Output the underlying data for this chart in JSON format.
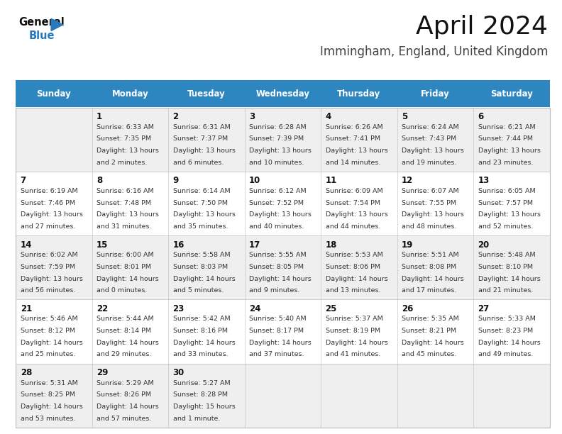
{
  "title": "April 2024",
  "subtitle": "Immingham, England, United Kingdom",
  "header_bg": "#2E86C1",
  "header_text_color": "#FFFFFF",
  "weekdays": [
    "Sunday",
    "Monday",
    "Tuesday",
    "Wednesday",
    "Thursday",
    "Friday",
    "Saturday"
  ],
  "row_bg_odd": "#EFEFEF",
  "row_bg_even": "#FFFFFF",
  "cell_border": "#BBBBBB",
  "title_fontsize": 26,
  "subtitle_fontsize": 12,
  "header_fontsize": 8.5,
  "day_fontsize": 8.5,
  "info_fontsize": 6.8,
  "days": [
    {
      "day": "",
      "row": 0,
      "col": 0,
      "sunrise": "",
      "sunset": "",
      "daylight": ""
    },
    {
      "day": "1",
      "row": 0,
      "col": 1,
      "sunrise": "6:33 AM",
      "sunset": "7:35 PM",
      "daylight": "13 hours\nand 2 minutes."
    },
    {
      "day": "2",
      "row": 0,
      "col": 2,
      "sunrise": "6:31 AM",
      "sunset": "7:37 PM",
      "daylight": "13 hours\nand 6 minutes."
    },
    {
      "day": "3",
      "row": 0,
      "col": 3,
      "sunrise": "6:28 AM",
      "sunset": "7:39 PM",
      "daylight": "13 hours\nand 10 minutes."
    },
    {
      "day": "4",
      "row": 0,
      "col": 4,
      "sunrise": "6:26 AM",
      "sunset": "7:41 PM",
      "daylight": "13 hours\nand 14 minutes."
    },
    {
      "day": "5",
      "row": 0,
      "col": 5,
      "sunrise": "6:24 AM",
      "sunset": "7:43 PM",
      "daylight": "13 hours\nand 19 minutes."
    },
    {
      "day": "6",
      "row": 0,
      "col": 6,
      "sunrise": "6:21 AM",
      "sunset": "7:44 PM",
      "daylight": "13 hours\nand 23 minutes."
    },
    {
      "day": "7",
      "row": 1,
      "col": 0,
      "sunrise": "6:19 AM",
      "sunset": "7:46 PM",
      "daylight": "13 hours\nand 27 minutes."
    },
    {
      "day": "8",
      "row": 1,
      "col": 1,
      "sunrise": "6:16 AM",
      "sunset": "7:48 PM",
      "daylight": "13 hours\nand 31 minutes."
    },
    {
      "day": "9",
      "row": 1,
      "col": 2,
      "sunrise": "6:14 AM",
      "sunset": "7:50 PM",
      "daylight": "13 hours\nand 35 minutes."
    },
    {
      "day": "10",
      "row": 1,
      "col": 3,
      "sunrise": "6:12 AM",
      "sunset": "7:52 PM",
      "daylight": "13 hours\nand 40 minutes."
    },
    {
      "day": "11",
      "row": 1,
      "col": 4,
      "sunrise": "6:09 AM",
      "sunset": "7:54 PM",
      "daylight": "13 hours\nand 44 minutes."
    },
    {
      "day": "12",
      "row": 1,
      "col": 5,
      "sunrise": "6:07 AM",
      "sunset": "7:55 PM",
      "daylight": "13 hours\nand 48 minutes."
    },
    {
      "day": "13",
      "row": 1,
      "col": 6,
      "sunrise": "6:05 AM",
      "sunset": "7:57 PM",
      "daylight": "13 hours\nand 52 minutes."
    },
    {
      "day": "14",
      "row": 2,
      "col": 0,
      "sunrise": "6:02 AM",
      "sunset": "7:59 PM",
      "daylight": "13 hours\nand 56 minutes."
    },
    {
      "day": "15",
      "row": 2,
      "col": 1,
      "sunrise": "6:00 AM",
      "sunset": "8:01 PM",
      "daylight": "14 hours\nand 0 minutes."
    },
    {
      "day": "16",
      "row": 2,
      "col": 2,
      "sunrise": "5:58 AM",
      "sunset": "8:03 PM",
      "daylight": "14 hours\nand 5 minutes."
    },
    {
      "day": "17",
      "row": 2,
      "col": 3,
      "sunrise": "5:55 AM",
      "sunset": "8:05 PM",
      "daylight": "14 hours\nand 9 minutes."
    },
    {
      "day": "18",
      "row": 2,
      "col": 4,
      "sunrise": "5:53 AM",
      "sunset": "8:06 PM",
      "daylight": "14 hours\nand 13 minutes."
    },
    {
      "day": "19",
      "row": 2,
      "col": 5,
      "sunrise": "5:51 AM",
      "sunset": "8:08 PM",
      "daylight": "14 hours\nand 17 minutes."
    },
    {
      "day": "20",
      "row": 2,
      "col": 6,
      "sunrise": "5:48 AM",
      "sunset": "8:10 PM",
      "daylight": "14 hours\nand 21 minutes."
    },
    {
      "day": "21",
      "row": 3,
      "col": 0,
      "sunrise": "5:46 AM",
      "sunset": "8:12 PM",
      "daylight": "14 hours\nand 25 minutes."
    },
    {
      "day": "22",
      "row": 3,
      "col": 1,
      "sunrise": "5:44 AM",
      "sunset": "8:14 PM",
      "daylight": "14 hours\nand 29 minutes."
    },
    {
      "day": "23",
      "row": 3,
      "col": 2,
      "sunrise": "5:42 AM",
      "sunset": "8:16 PM",
      "daylight": "14 hours\nand 33 minutes."
    },
    {
      "day": "24",
      "row": 3,
      "col": 3,
      "sunrise": "5:40 AM",
      "sunset": "8:17 PM",
      "daylight": "14 hours\nand 37 minutes."
    },
    {
      "day": "25",
      "row": 3,
      "col": 4,
      "sunrise": "5:37 AM",
      "sunset": "8:19 PM",
      "daylight": "14 hours\nand 41 minutes."
    },
    {
      "day": "26",
      "row": 3,
      "col": 5,
      "sunrise": "5:35 AM",
      "sunset": "8:21 PM",
      "daylight": "14 hours\nand 45 minutes."
    },
    {
      "day": "27",
      "row": 3,
      "col": 6,
      "sunrise": "5:33 AM",
      "sunset": "8:23 PM",
      "daylight": "14 hours\nand 49 minutes."
    },
    {
      "day": "28",
      "row": 4,
      "col": 0,
      "sunrise": "5:31 AM",
      "sunset": "8:25 PM",
      "daylight": "14 hours\nand 53 minutes."
    },
    {
      "day": "29",
      "row": 4,
      "col": 1,
      "sunrise": "5:29 AM",
      "sunset": "8:26 PM",
      "daylight": "14 hours\nand 57 minutes."
    },
    {
      "day": "30",
      "row": 4,
      "col": 2,
      "sunrise": "5:27 AM",
      "sunset": "8:28 PM",
      "daylight": "15 hours\nand 1 minute."
    },
    {
      "day": "",
      "row": 4,
      "col": 3,
      "sunrise": "",
      "sunset": "",
      "daylight": ""
    },
    {
      "day": "",
      "row": 4,
      "col": 4,
      "sunrise": "",
      "sunset": "",
      "daylight": ""
    },
    {
      "day": "",
      "row": 4,
      "col": 5,
      "sunrise": "",
      "sunset": "",
      "daylight": ""
    },
    {
      "day": "",
      "row": 4,
      "col": 6,
      "sunrise": "",
      "sunset": "",
      "daylight": ""
    }
  ]
}
